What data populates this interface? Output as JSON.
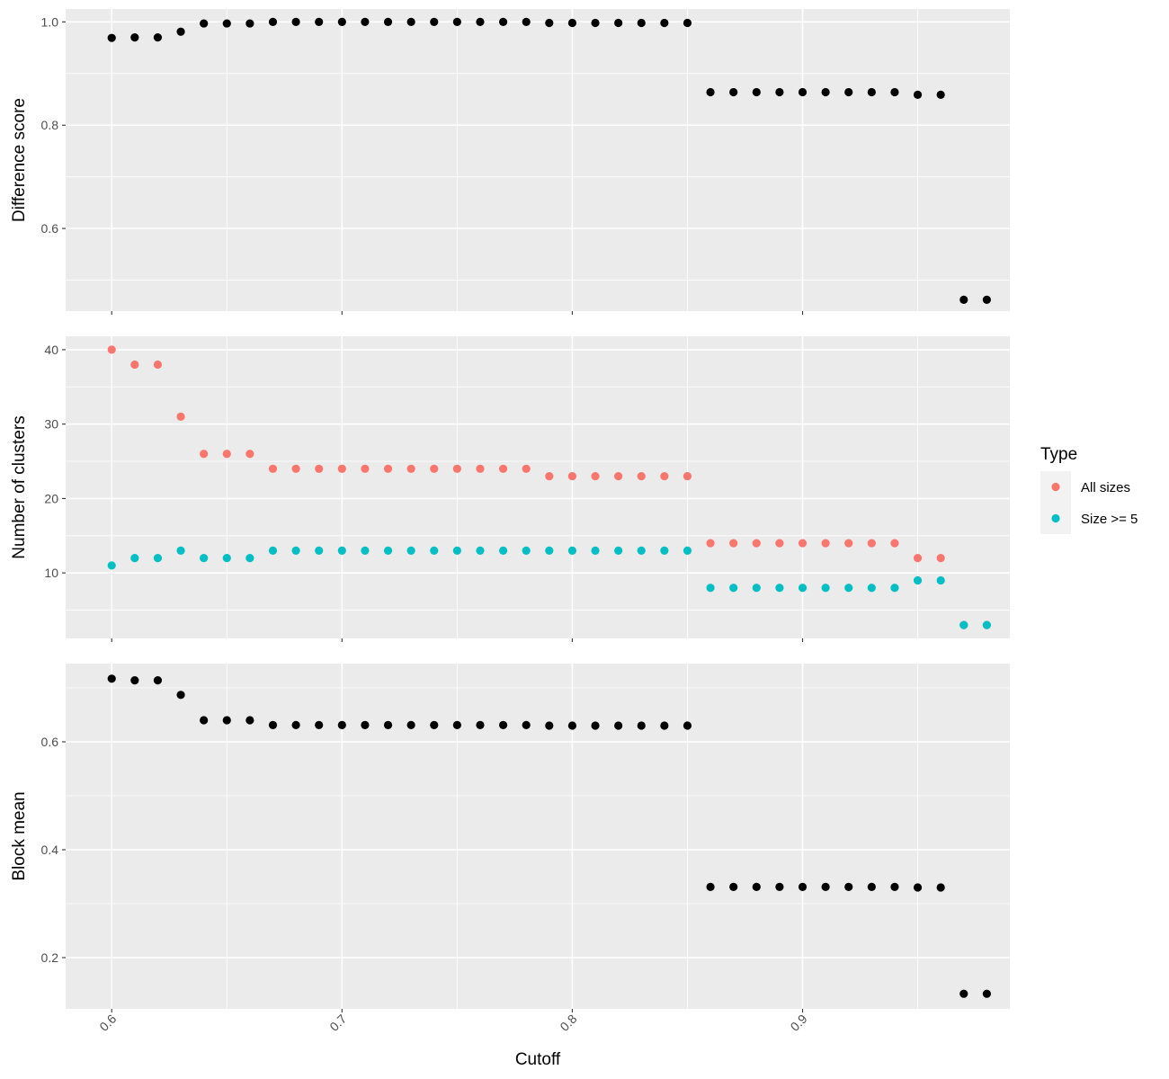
{
  "chart_data": {
    "type": "scatter",
    "layout": "faceted-vertical",
    "xlabel": "Cutoff",
    "xlim": [
      0.58,
      0.99
    ],
    "xticks": [
      0.6,
      0.7,
      0.8,
      0.9
    ],
    "xtick_labels": [
      "0.6",
      "0.7",
      "0.8",
      "0.9"
    ],
    "x": [
      0.6,
      0.61,
      0.62,
      0.63,
      0.64,
      0.65,
      0.66,
      0.67,
      0.68,
      0.69,
      0.7,
      0.71,
      0.72,
      0.73,
      0.74,
      0.75,
      0.76,
      0.77,
      0.78,
      0.79,
      0.8,
      0.81,
      0.82,
      0.83,
      0.84,
      0.85,
      0.86,
      0.87,
      0.88,
      0.89,
      0.9,
      0.91,
      0.92,
      0.93,
      0.94,
      0.95,
      0.96,
      0.97,
      0.98
    ],
    "grid": true,
    "legend": {
      "title": "Type",
      "placement": "right",
      "entries": [
        {
          "label": "All sizes",
          "color": "#F8766D"
        },
        {
          "label": "Size >= 5",
          "color": "#00BFC4"
        }
      ]
    },
    "panels": [
      {
        "ylabel": "Difference score",
        "ylim": [
          0.44,
          1.025
        ],
        "yticks": [
          0.6,
          0.8,
          1.0
        ],
        "ytick_labels": [
          "0.6",
          "0.8",
          "1.0"
        ],
        "series": [
          {
            "color": "#000000",
            "values": [
              0.969,
              0.97,
              0.97,
              0.981,
              0.997,
              0.997,
              0.997,
              1.0,
              1.0,
              1.0,
              1.0,
              1.0,
              1.0,
              1.0,
              1.0,
              1.0,
              1.0,
              1.0,
              1.0,
              0.998,
              0.998,
              0.998,
              0.998,
              0.998,
              0.998,
              0.998,
              0.864,
              0.864,
              0.864,
              0.864,
              0.864,
              0.864,
              0.864,
              0.864,
              0.864,
              0.859,
              0.859,
              0.462,
              0.462
            ]
          }
        ]
      },
      {
        "ylabel": "Number of clusters",
        "ylim": [
          1.2,
          41.8
        ],
        "yticks": [
          10,
          20,
          30,
          40
        ],
        "ytick_labels": [
          "10",
          "20",
          "30",
          "40"
        ],
        "series": [
          {
            "name": "All sizes",
            "color": "#F8766D",
            "values": [
              40,
              38,
              38,
              31,
              26,
              26,
              26,
              24,
              24,
              24,
              24,
              24,
              24,
              24,
              24,
              24,
              24,
              24,
              24,
              23,
              23,
              23,
              23,
              23,
              23,
              23,
              14,
              14,
              14,
              14,
              14,
              14,
              14,
              14,
              14,
              12,
              12,
              3,
              3
            ]
          },
          {
            "name": "Size >= 5",
            "color": "#00BFC4",
            "values": [
              11,
              12,
              12,
              13,
              12,
              12,
              12,
              13,
              13,
              13,
              13,
              13,
              13,
              13,
              13,
              13,
              13,
              13,
              13,
              13,
              13,
              13,
              13,
              13,
              13,
              13,
              8,
              8,
              8,
              8,
              8,
              8,
              8,
              8,
              8,
              9,
              9,
              3,
              3
            ]
          }
        ]
      },
      {
        "ylabel": "Block mean",
        "ylim": [
          0.105,
          0.745
        ],
        "yticks": [
          0.2,
          0.4,
          0.6
        ],
        "ytick_labels": [
          "0.2",
          "0.4",
          "0.6"
        ],
        "series": [
          {
            "color": "#000000",
            "values": [
              0.717,
              0.714,
              0.714,
              0.687,
              0.64,
              0.64,
              0.64,
              0.631,
              0.631,
              0.631,
              0.631,
              0.631,
              0.631,
              0.631,
              0.631,
              0.631,
              0.631,
              0.631,
              0.631,
              0.63,
              0.63,
              0.63,
              0.63,
              0.63,
              0.63,
              0.63,
              0.331,
              0.331,
              0.331,
              0.331,
              0.331,
              0.331,
              0.331,
              0.331,
              0.331,
              0.33,
              0.33,
              0.133,
              0.133
            ]
          }
        ]
      }
    ]
  }
}
